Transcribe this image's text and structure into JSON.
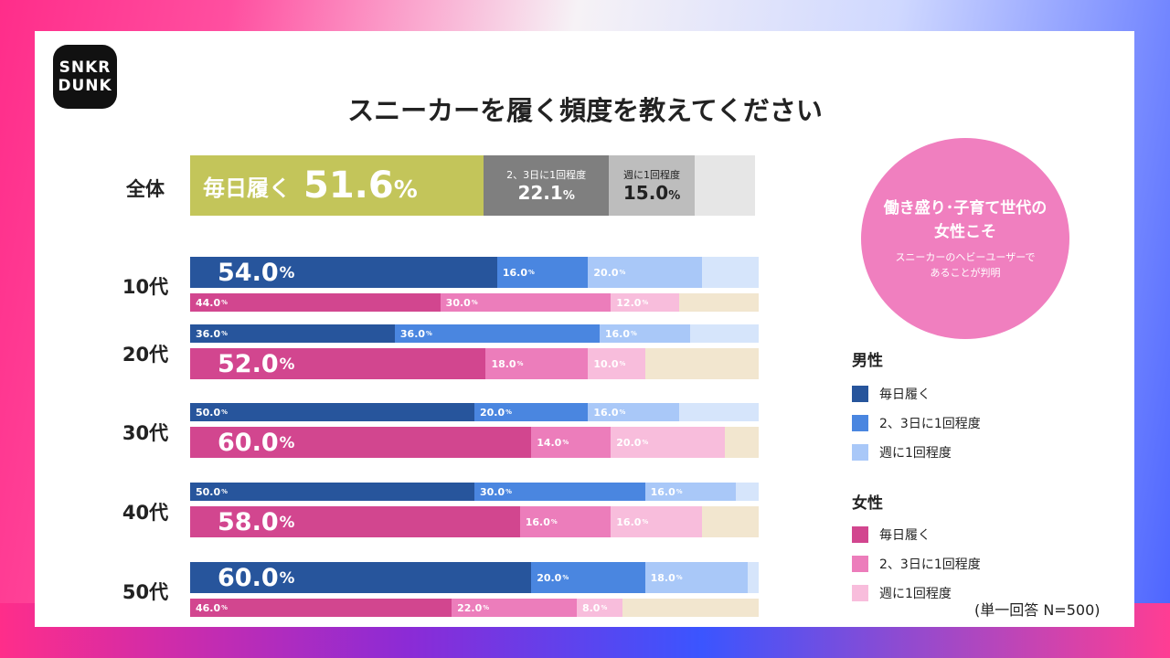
{
  "brand": {
    "line1": "SNKR",
    "line2": "DUNK"
  },
  "title": "スニーカーを履く頻度を教えてください",
  "callout": {
    "line1": "働き盛り･子育て世代の",
    "line2": "女性こそ",
    "line3": "スニーカーのヘビーユーザーで",
    "line4": "あることが判明"
  },
  "note": "(単一回答 N=500)",
  "colors": {
    "total_daily": "#c3c55a",
    "total_23": "#7f7f7f",
    "total_week": "#bdbdbd",
    "total_rest": "#e6e6e6",
    "male_daily": "#27559c",
    "male_23": "#4a86e0",
    "male_week": "#a9c8f8",
    "male_rest": "#d6e5fb",
    "female_daily": "#d2468f",
    "female_23": "#ec7dbb",
    "female_week": "#f8bddc",
    "female_rest": "#f2e6cf"
  },
  "legend": {
    "male_title": "男性",
    "female_title": "女性",
    "items": [
      "毎日履く",
      "2、3日に1回程度",
      "週に1回程度"
    ]
  },
  "chart_data": {
    "type": "bar",
    "stacked": true,
    "orientation": "horizontal",
    "total": {
      "label": "全体",
      "daily_label": "毎日履く",
      "values": [
        51.6,
        22.1,
        15.0
      ],
      "segment_labels": [
        "",
        "2、3日に1回程度",
        "週に1回程度"
      ]
    },
    "categories": [
      "10代",
      "20代",
      "30代",
      "40代",
      "50代"
    ],
    "series": [
      {
        "name": "男性",
        "values": [
          [
            54.0,
            16.0,
            20.0
          ],
          [
            36.0,
            36.0,
            16.0
          ],
          [
            50.0,
            20.0,
            16.0
          ],
          [
            50.0,
            30.0,
            16.0
          ],
          [
            60.0,
            20.0,
            18.0
          ]
        ]
      },
      {
        "name": "女性",
        "values": [
          [
            44.0,
            30.0,
            12.0
          ],
          [
            52.0,
            18.0,
            10.0
          ],
          [
            60.0,
            14.0,
            20.0
          ],
          [
            58.0,
            16.0,
            16.0
          ],
          [
            46.0,
            22.0,
            8.0
          ]
        ]
      }
    ],
    "segments": [
      "毎日履く",
      "2、3日に1回程度",
      "週に1回程度"
    ],
    "highlight": [
      [
        true,
        false
      ],
      [
        false,
        true
      ],
      [
        false,
        true
      ],
      [
        false,
        true
      ],
      [
        true,
        false
      ]
    ],
    "xlim": [
      0,
      100
    ]
  }
}
